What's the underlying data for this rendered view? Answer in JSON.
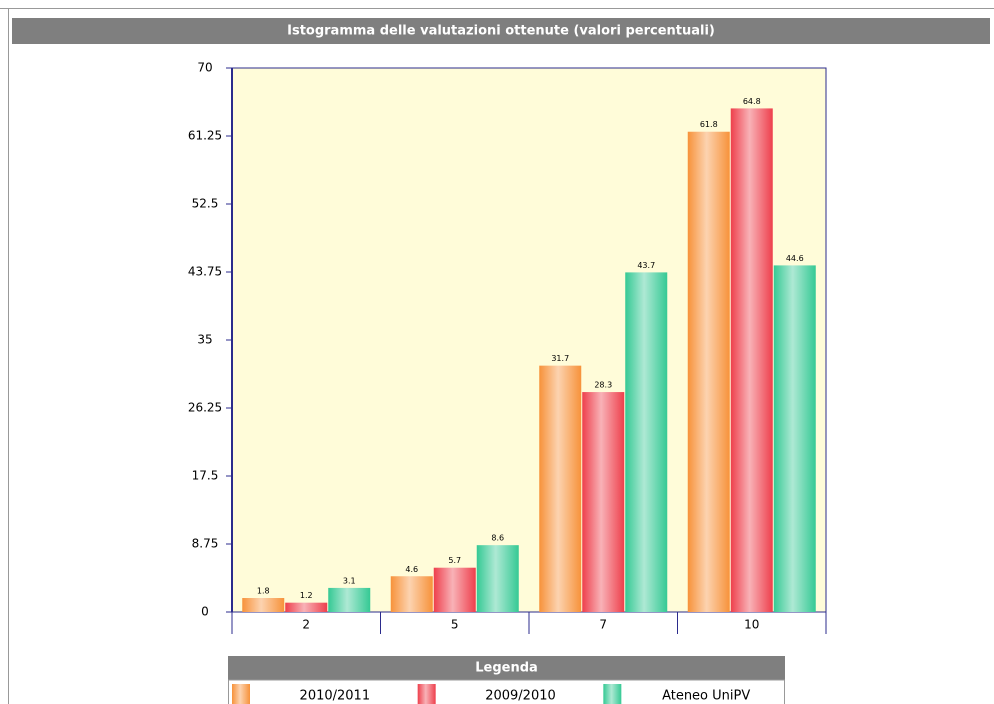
{
  "chart_data": {
    "type": "bar",
    "title": "Istogramma delle valutazioni ottenute (valori percentuali)",
    "categories": [
      "2",
      "5",
      "7",
      "10"
    ],
    "series": [
      {
        "name": "2010/2011",
        "color": "#f7923a",
        "values": [
          1.8,
          4.6,
          31.7,
          61.8
        ]
      },
      {
        "name": "2009/2010",
        "color": "#ee3f4c",
        "values": [
          1.2,
          5.7,
          28.3,
          64.8
        ]
      },
      {
        "name": "Ateneo UniPV",
        "color": "#35c994",
        "values": [
          3.1,
          8.6,
          43.7,
          44.6
        ]
      }
    ],
    "ylim": [
      0,
      70
    ],
    "yticks": [
      0,
      8.75,
      17.5,
      26.25,
      35,
      43.75,
      52.5,
      61.25,
      70
    ],
    "legend_title": "Legenda",
    "plot_background": "#fffcd9"
  }
}
